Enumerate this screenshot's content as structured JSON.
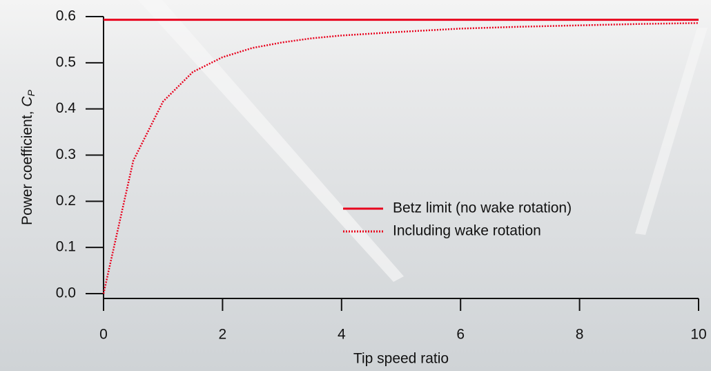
{
  "chart_data": {
    "type": "line",
    "xlabel": "Tip speed ratio",
    "ylabel": "Power coefficient,",
    "ylabel_symbol": "C",
    "ylabel_subscript": "P",
    "xlim": [
      0,
      10
    ],
    "ylim": [
      0,
      0.6
    ],
    "xticks": [
      0,
      2,
      4,
      6,
      8,
      10
    ],
    "yticks": [
      {
        "value": 0,
        "label": "0.0"
      },
      0.1,
      0.2,
      0.3,
      0.4,
      0.5,
      0.6
    ],
    "legend_position": "center-right",
    "series": [
      {
        "name": "Betz limit (no wake rotation)",
        "color": "#e8001c",
        "style": "solid",
        "x": [
          0,
          10
        ],
        "values": [
          0.593,
          0.593
        ]
      },
      {
        "name": "Including wake rotation",
        "color": "#e8001c",
        "style": "dotted",
        "x": [
          0,
          0.5,
          1,
          1.5,
          2,
          2.5,
          3,
          3.5,
          4,
          5,
          6,
          7,
          8,
          9,
          10
        ],
        "values": [
          0,
          0.288,
          0.416,
          0.48,
          0.512,
          0.532,
          0.544,
          0.553,
          0.559,
          0.567,
          0.574,
          0.578,
          0.581,
          0.584,
          0.586
        ]
      }
    ]
  }
}
